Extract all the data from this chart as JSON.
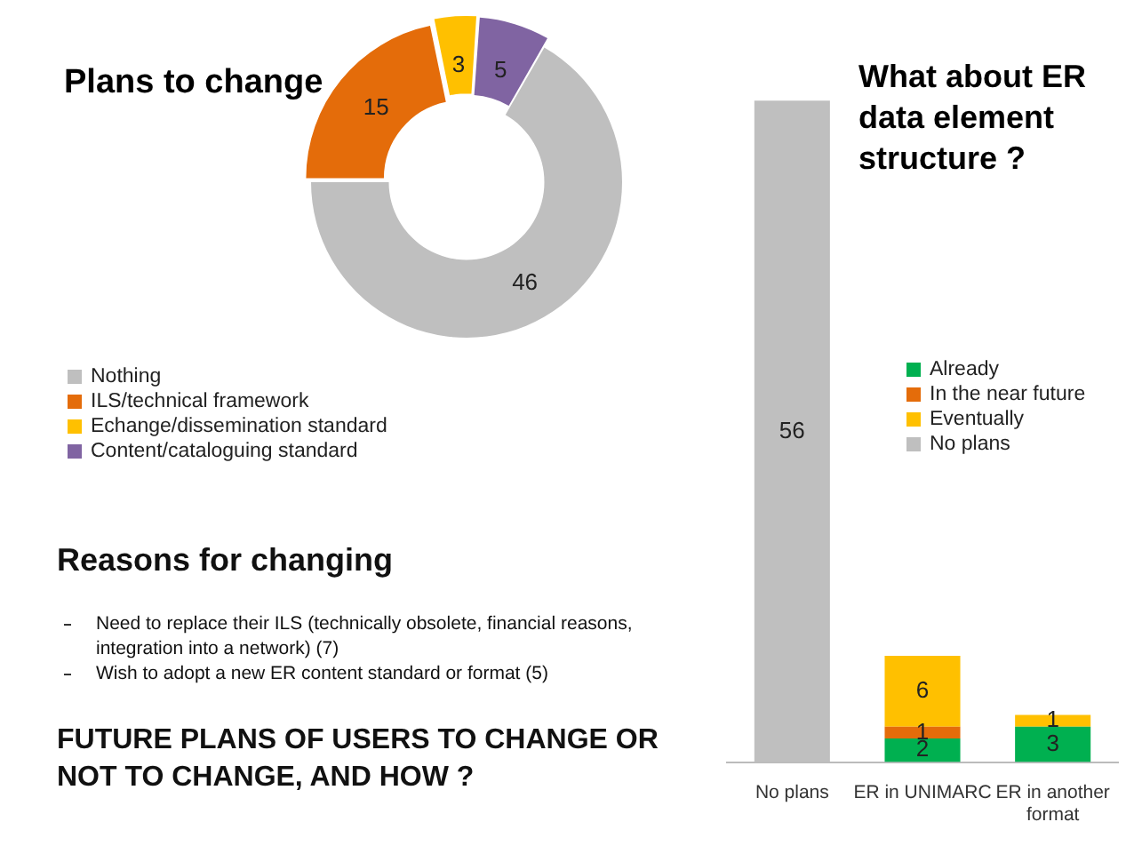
{
  "chart_data": [
    {
      "type": "donut",
      "title": "Plans to change",
      "categories": [
        "Nothing",
        "ILS/technical framework",
        "Echange/dissemination standard",
        "Content/cataloguing standard"
      ],
      "values": [
        46,
        15,
        3,
        5
      ],
      "colors": [
        "#bfbfbf",
        "#e46c0a",
        "#ffc000",
        "#8064a2"
      ],
      "data_labels": true,
      "legend": "bottom left",
      "annotations": [
        "Reasons for changing",
        "Need to replace their ILS (technically obsolete, financial reasons, integration into a network) (7)",
        "Wish to adopt a new ER content standard or format (5)",
        "FUTURE PLANS OF USERS TO CHANGE OR NOT TO CHANGE, AND HOW ?"
      ]
    },
    {
      "type": "bar",
      "title": "What about ER data element structure ?",
      "stacked": true,
      "categories": [
        "No plans",
        "ER in UNIMARC",
        "ER in another format"
      ],
      "series": [
        {
          "name": "Already",
          "color": "#00b050",
          "values": [
            null,
            2,
            3
          ]
        },
        {
          "name": "In the near future",
          "color": "#e46c0a",
          "values": [
            null,
            1,
            null
          ]
        },
        {
          "name": "Eventually",
          "color": "#ffc000",
          "values": [
            null,
            6,
            1
          ]
        },
        {
          "name": "No plans",
          "color": "#bfbfbf",
          "values": [
            56,
            null,
            null
          ]
        }
      ],
      "data_labels": true,
      "legend": "right"
    }
  ]
}
